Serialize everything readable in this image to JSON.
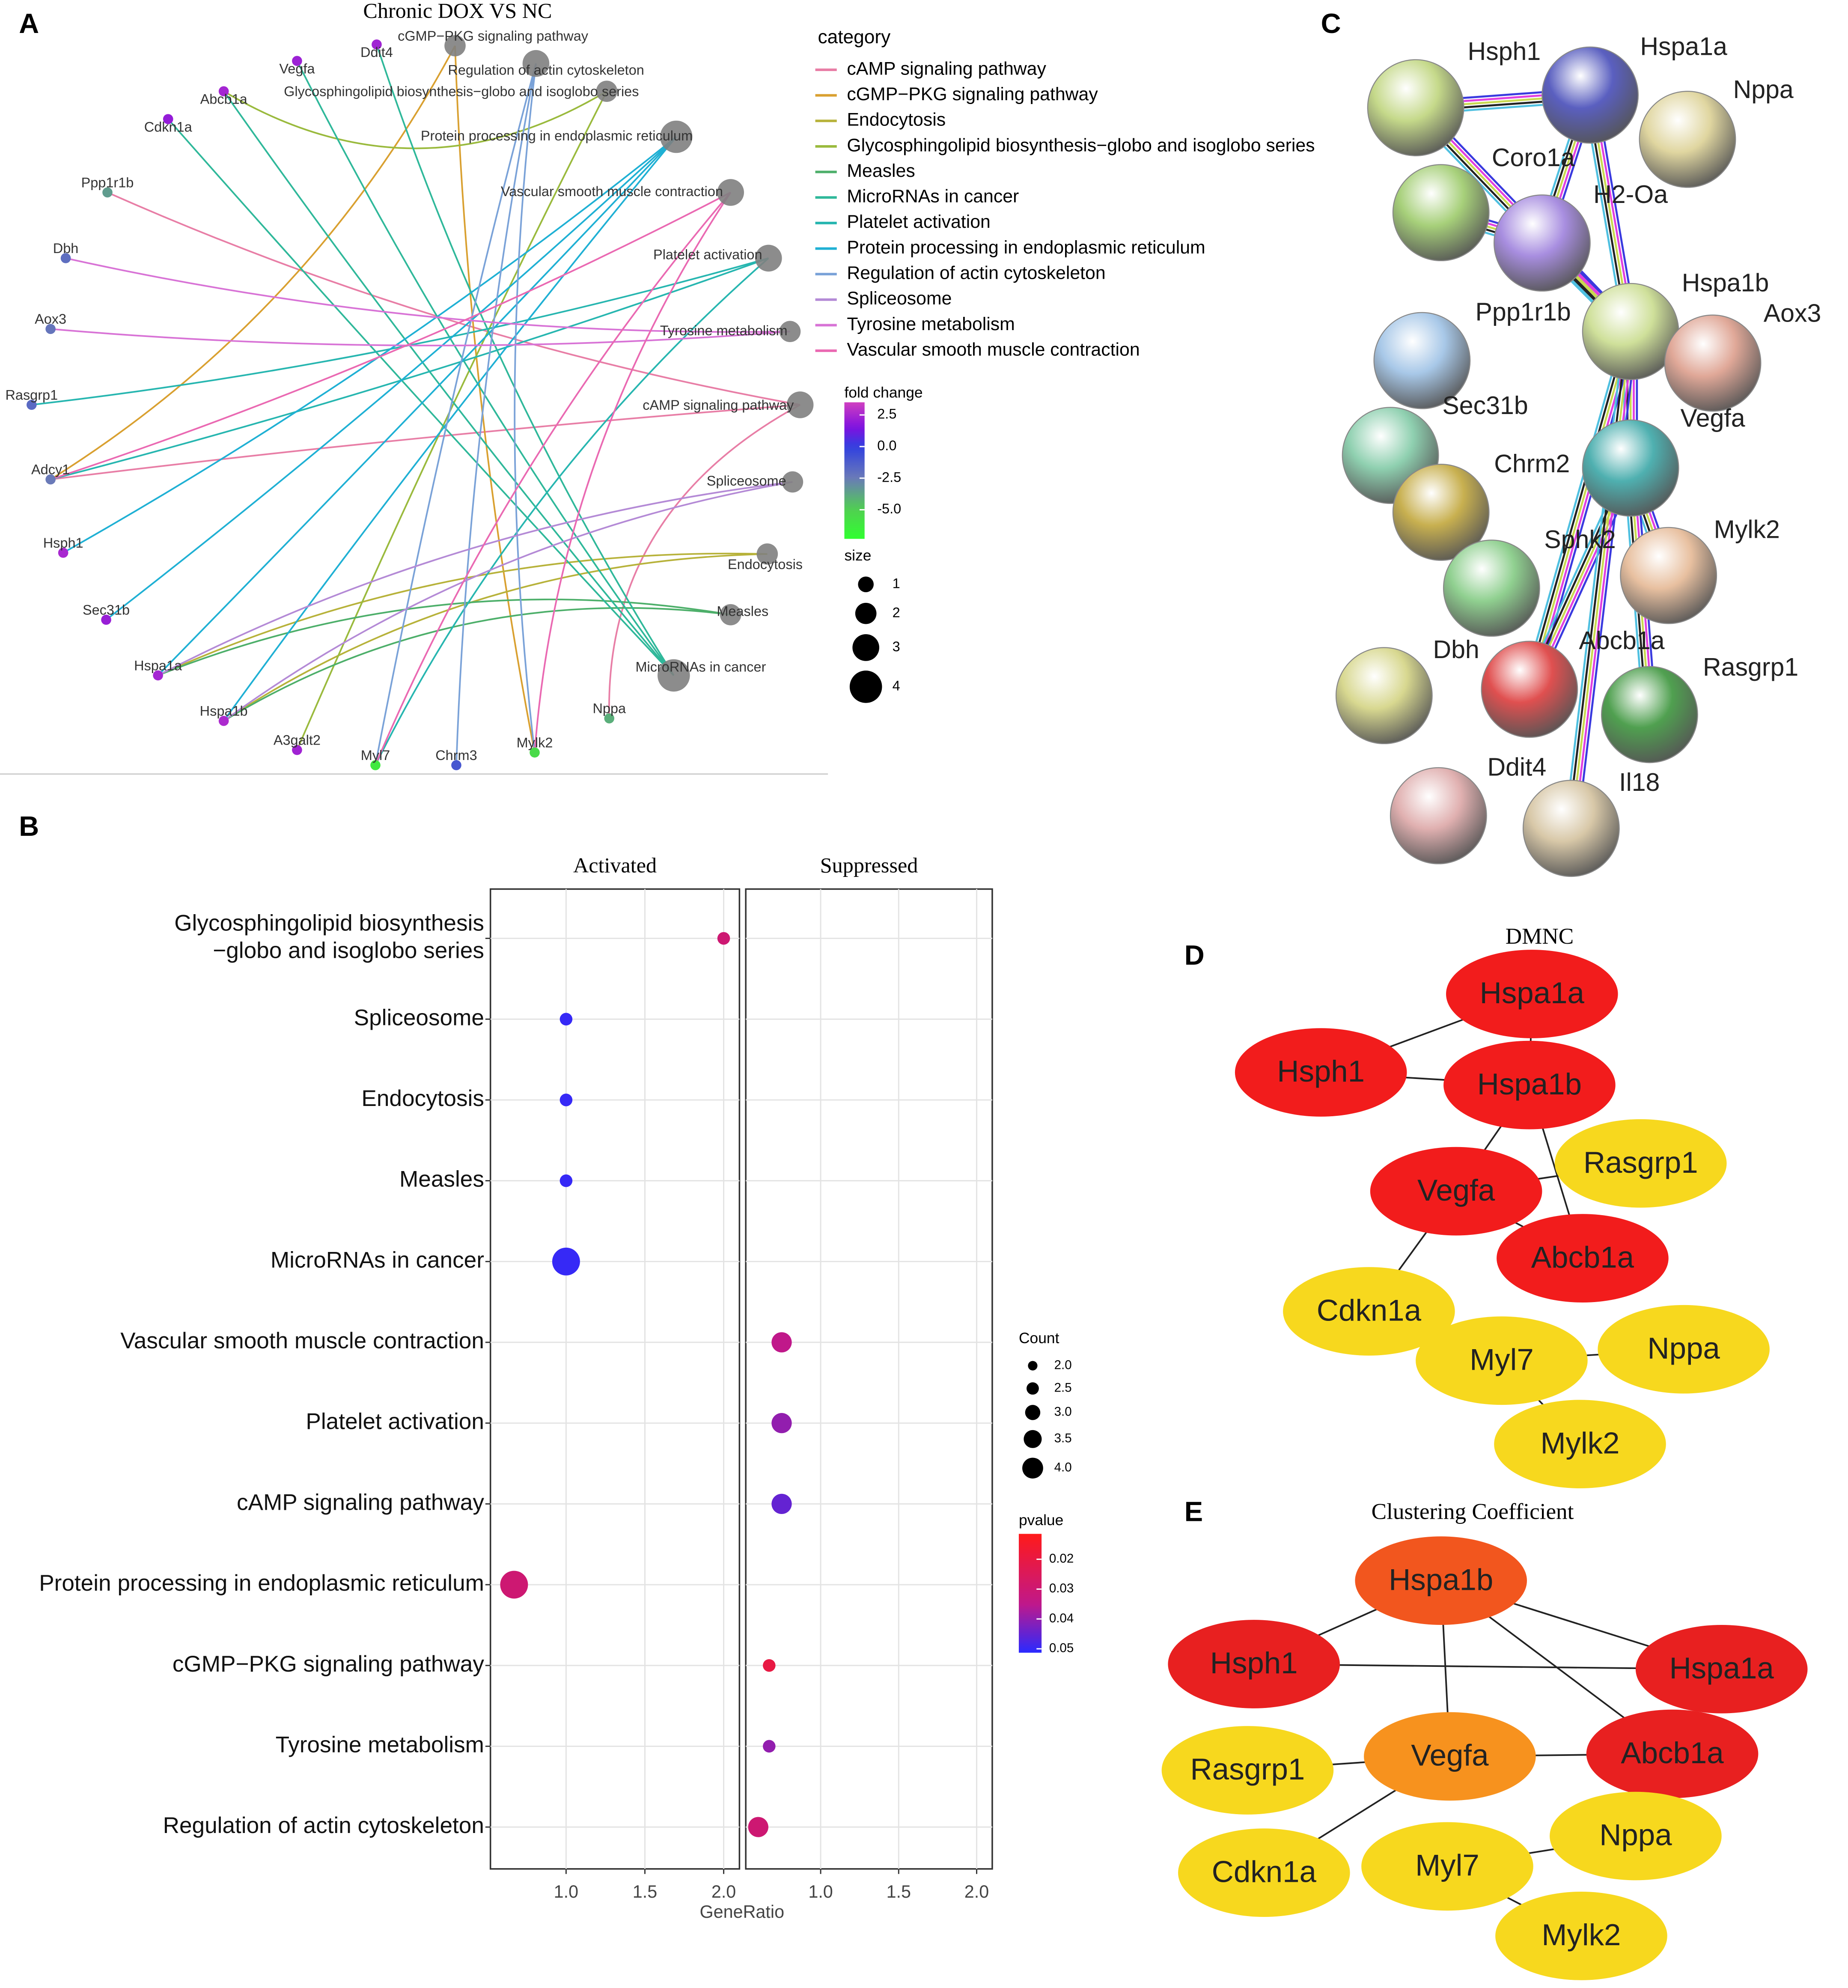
{
  "panel_labels": [
    "A",
    "B",
    "C",
    "D",
    "E"
  ],
  "cnet": {
    "title": "Chronic DOX VS NC",
    "genes": [
      {
        "name": "Ddit4",
        "fold_change": 2.3
      },
      {
        "name": "Vegfa",
        "fold_change": 2.2
      },
      {
        "name": "Abcb1a",
        "fold_change": 2.4
      },
      {
        "name": "Cdkn1a",
        "fold_change": 2.0
      },
      {
        "name": "Ppp1r1b",
        "fold_change": -3.5
      },
      {
        "name": "Dbh",
        "fold_change": -2.0
      },
      {
        "name": "Aox3",
        "fold_change": -2.3
      },
      {
        "name": "Rasgrp1",
        "fold_change": -1.8
      },
      {
        "name": "Adcy1",
        "fold_change": -2.5
      },
      {
        "name": "Hsph1",
        "fold_change": 2.5
      },
      {
        "name": "Sec31b",
        "fold_change": 2.1
      },
      {
        "name": "Hspa1a",
        "fold_change": 2.4
      },
      {
        "name": "Hspa1b",
        "fold_change": 2.6
      },
      {
        "name": "A3galt2",
        "fold_change": 2.3
      },
      {
        "name": "Myl7",
        "fold_change": -6.2
      },
      {
        "name": "Chrm3",
        "fold_change": -1.0
      },
      {
        "name": "Mylk2",
        "fold_change": -5.5
      },
      {
        "name": "Nppa",
        "fold_change": -4.0
      }
    ],
    "pathways": [
      {
        "name": "cAMP signaling pathway",
        "color": "#e87ea6",
        "size": 3
      },
      {
        "name": "cGMP−PKG signaling pathway",
        "color": "#d9a030",
        "size": 2
      },
      {
        "name": "Endocytosis",
        "color": "#b7b23a",
        "size": 2
      },
      {
        "name": "Glycosphingolipid biosynthesis−globo and isoglobo series",
        "color": "#9aba3d",
        "size": 2
      },
      {
        "name": "Measles",
        "color": "#4daf6a",
        "size": 2
      },
      {
        "name": "MicroRNAs in cancer",
        "color": "#2fb89a",
        "size": 4
      },
      {
        "name": "Platelet activation",
        "color": "#27b6b0",
        "size": 3
      },
      {
        "name": "Protein processing in endoplasmic reticulum",
        "color": "#1fb0d4",
        "size": 4
      },
      {
        "name": "Regulation of actin cytoskeleton",
        "color": "#7aa2d8",
        "size": 3
      },
      {
        "name": "Spliceosome",
        "color": "#b48ad6",
        "size": 2
      },
      {
        "name": "Tyrosine metabolism",
        "color": "#d873d6",
        "size": 2
      },
      {
        "name": "Vascular smooth muscle contraction",
        "color": "#ea69b2",
        "size": 3
      }
    ],
    "edges": [
      [
        4,
        0
      ],
      [
        8,
        0
      ],
      [
        17,
        0
      ],
      [
        8,
        1
      ],
      [
        16,
        1
      ],
      [
        11,
        2
      ],
      [
        12,
        2
      ],
      [
        13,
        3
      ],
      [
        2,
        3
      ],
      [
        11,
        4
      ],
      [
        12,
        4
      ],
      [
        0,
        5
      ],
      [
        1,
        5
      ],
      [
        2,
        5
      ],
      [
        3,
        5
      ],
      [
        8,
        6
      ],
      [
        7,
        6
      ],
      [
        14,
        6
      ],
      [
        9,
        7
      ],
      [
        10,
        7
      ],
      [
        11,
        7
      ],
      [
        12,
        7
      ],
      [
        15,
        8
      ],
      [
        14,
        8
      ],
      [
        16,
        8
      ],
      [
        11,
        9
      ],
      [
        12,
        9
      ],
      [
        5,
        10
      ],
      [
        6,
        10
      ],
      [
        8,
        11
      ],
      [
        14,
        11
      ],
      [
        16,
        11
      ]
    ],
    "legend_title": "category",
    "fold_change_title": "fold change",
    "fold_change_ticks": [
      2.5,
      {
        "value": 0,
        "label": "0.0"
      },
      -2.5,
      {
        "value": -5,
        "label": "-5.0"
      }
    ],
    "fold_change_lim": [
      -7.3,
      3.5
    ],
    "size_title": "size",
    "size_ticks": [
      1,
      2,
      3,
      4
    ]
  },
  "chart_data": {
    "type": "dot",
    "xlabel": "GeneRatio",
    "categories": [
      "Glycosphingolipid biosynthesis\n−globo and isoglobo series",
      "Spliceosome",
      "Endocytosis",
      "Measles",
      "MicroRNAs in cancer",
      "Vascular smooth muscle contraction",
      "Platelet activation",
      "cAMP signaling pathway",
      "Protein processing in endoplasmic reticulum",
      "cGMP−PKG signaling pathway",
      "Tyrosine metabolism",
      "Regulation of actin cytoskeleton"
    ],
    "series": [
      {
        "name": "Activated",
        "values": [
          2.0,
          1.0,
          1.0,
          1.0,
          1.0,
          null,
          null,
          null,
          0.67,
          null,
          null,
          null
        ],
        "counts": [
          2,
          2,
          2,
          2,
          4,
          null,
          null,
          null,
          4,
          null,
          null,
          null
        ],
        "pvalues": [
          0.03,
          0.05,
          0.05,
          0.05,
          0.05,
          null,
          null,
          null,
          0.03,
          null,
          null,
          null
        ]
      },
      {
        "name": "Suppressed",
        "values": [
          null,
          null,
          null,
          null,
          null,
          0.75,
          0.75,
          0.75,
          null,
          0.67,
          0.67,
          0.6
        ],
        "counts": [
          null,
          null,
          null,
          null,
          null,
          3,
          3,
          3,
          null,
          2,
          2,
          3
        ],
        "pvalues": [
          null,
          null,
          null,
          null,
          null,
          0.035,
          0.04,
          0.045,
          null,
          0.02,
          0.04,
          0.03
        ]
      }
    ],
    "xlim": [
      0.52,
      2.1
    ],
    "xticks": [
      {
        "value": 1,
        "label": "1.0"
      },
      {
        "value": 1.5,
        "label": "1.5"
      },
      {
        "value": 2,
        "label": "2.0"
      }
    ],
    "grid": true,
    "size_title": "Count",
    "size_ticks": [
      {
        "value": 2,
        "label": "2.0"
      },
      2.5,
      {
        "value": 3,
        "label": "3.0"
      },
      3.5,
      {
        "value": 4,
        "label": "4.0"
      }
    ],
    "color_title": "pvalue",
    "color_ticks": [
      0.02,
      0.03,
      0.04,
      0.05
    ],
    "color_lim": [
      0.0115,
      0.0513
    ]
  },
  "string_network": {
    "nodes": [
      {
        "name": "Hsph1",
        "color": "#c5d98a"
      },
      {
        "name": "Hspa1a",
        "color": "#5a5fc0"
      },
      {
        "name": "Nppa",
        "color": "#e0d6a0"
      },
      {
        "name": "Coro1a",
        "color": "#a7d07a"
      },
      {
        "name": "H2-Oa",
        "color": "#a88ee0"
      },
      {
        "name": "Ppp1r1b",
        "color": "#a8c8e8"
      },
      {
        "name": "Hspa1b",
        "color": "#cfe09a"
      },
      {
        "name": "Aox3",
        "color": "#e0a898"
      },
      {
        "name": "Sec31b",
        "color": "#8fd0b0"
      },
      {
        "name": "Vegfa",
        "color": "#4fb0b0"
      },
      {
        "name": "Chrm2",
        "color": "#c8b050"
      },
      {
        "name": "Sphk2",
        "color": "#90d090"
      },
      {
        "name": "Mylk2",
        "color": "#e8c0a0"
      },
      {
        "name": "Dbh",
        "color": "#d8d890"
      },
      {
        "name": "Abcb1a",
        "color": "#e05050"
      },
      {
        "name": "Rasgrp1",
        "color": "#50a050"
      },
      {
        "name": "Ddit4",
        "color": "#e0b0b0"
      },
      {
        "name": "Il18",
        "color": "#d8c8a8"
      }
    ],
    "edges": [
      [
        0,
        1
      ],
      [
        0,
        6
      ],
      [
        1,
        6
      ],
      [
        1,
        4
      ],
      [
        3,
        4
      ],
      [
        4,
        6
      ],
      [
        6,
        9
      ],
      [
        6,
        14
      ],
      [
        9,
        14
      ],
      [
        9,
        12
      ],
      [
        9,
        15
      ],
      [
        6,
        17
      ]
    ]
  },
  "dmnc": {
    "title": "DMNC",
    "nodes": [
      {
        "name": "Hspa1a",
        "color": "#f21c1c"
      },
      {
        "name": "Hsph1",
        "color": "#f21c1c"
      },
      {
        "name": "Hspa1b",
        "color": "#f21c1c"
      },
      {
        "name": "Rasgrp1",
        "color": "#f7d81e"
      },
      {
        "name": "Vegfa",
        "color": "#f21c1c"
      },
      {
        "name": "Abcb1a",
        "color": "#f21c1c"
      },
      {
        "name": "Cdkn1a",
        "color": "#f7d81e"
      },
      {
        "name": "Myl7",
        "color": "#f7d81e"
      },
      {
        "name": "Nppa",
        "color": "#f7d81e"
      },
      {
        "name": "Mylk2",
        "color": "#f7d81e"
      }
    ],
    "edges": [
      [
        1,
        0
      ],
      [
        1,
        2
      ],
      [
        0,
        2
      ],
      [
        2,
        4
      ],
      [
        2,
        5
      ],
      [
        4,
        5
      ],
      [
        4,
        3
      ],
      [
        4,
        6
      ],
      [
        7,
        8
      ],
      [
        7,
        9
      ]
    ]
  },
  "clustering": {
    "title": "Clustering Coefficient",
    "nodes": [
      {
        "name": "Hspa1b",
        "color": "#f2561e"
      },
      {
        "name": "Hsph1",
        "color": "#e82020"
      },
      {
        "name": "Hspa1a",
        "color": "#e82020"
      },
      {
        "name": "Rasgrp1",
        "color": "#f7d81e"
      },
      {
        "name": "Vegfa",
        "color": "#f7921e"
      },
      {
        "name": "Abcb1a",
        "color": "#e82020"
      },
      {
        "name": "Cdkn1a",
        "color": "#f7d81e"
      },
      {
        "name": "Myl7",
        "color": "#f7d81e"
      },
      {
        "name": "Nppa",
        "color": "#f7d81e"
      },
      {
        "name": "Mylk2",
        "color": "#f7d81e"
      }
    ],
    "edges": [
      [
        0,
        1
      ],
      [
        0,
        2
      ],
      [
        0,
        5
      ],
      [
        0,
        4
      ],
      [
        1,
        2
      ],
      [
        4,
        5
      ],
      [
        4,
        3
      ],
      [
        4,
        6
      ],
      [
        7,
        8
      ],
      [
        7,
        9
      ]
    ]
  }
}
